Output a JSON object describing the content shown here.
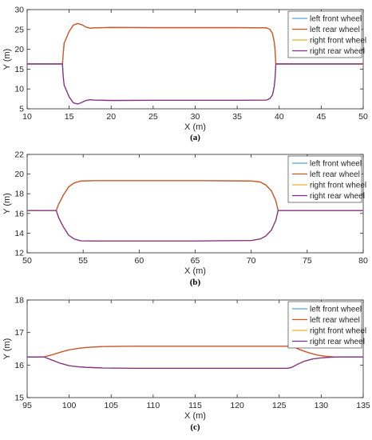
{
  "chart_data": [
    {
      "type": "line",
      "caption": "(a)",
      "xlabel": "X (m)",
      "ylabel": "Y (m)",
      "xlim": [
        10,
        50
      ],
      "ylim": [
        5,
        30
      ],
      "xticks": [
        10,
        15,
        20,
        25,
        30,
        35,
        40,
        45,
        50
      ],
      "yticks": [
        5,
        10,
        15,
        20,
        25,
        30
      ],
      "legend_position": "top-right",
      "series": [
        {
          "name": "left front wheel",
          "color": "#4fa6d8",
          "x": [
            10,
            14.2,
            14.3,
            14.4,
            15.0,
            15.5,
            16.0,
            16.5,
            17.0,
            17.5,
            18.0,
            20.0,
            25.0,
            30.0,
            35.0,
            38.5,
            38.9,
            39.2,
            39.4,
            39.5,
            39.6,
            50
          ],
          "y": [
            16.3,
            16.3,
            19.0,
            21.5,
            24.5,
            26.1,
            26.5,
            26.2,
            25.6,
            25.3,
            25.4,
            25.5,
            25.45,
            25.45,
            25.45,
            25.4,
            25.0,
            24.0,
            22.0,
            20.0,
            16.3,
            16.3
          ]
        },
        {
          "name": "left rear wheel",
          "color": "#d95319",
          "x": [
            10,
            14.2,
            14.3,
            14.4,
            15.0,
            15.5,
            16.0,
            16.5,
            17.0,
            17.5,
            18.0,
            20.0,
            25.0,
            30.0,
            35.0,
            38.5,
            38.9,
            39.2,
            39.4,
            39.5,
            39.6,
            50
          ],
          "y": [
            16.3,
            16.3,
            19.0,
            21.5,
            24.5,
            26.1,
            26.5,
            26.2,
            25.6,
            25.3,
            25.4,
            25.5,
            25.45,
            25.45,
            25.45,
            25.4,
            25.0,
            24.0,
            22.0,
            20.0,
            16.3,
            16.3
          ]
        },
        {
          "name": "right front wheel",
          "color": "#edb120",
          "x": [
            10,
            14.2,
            14.3,
            14.4,
            15.0,
            15.5,
            16.0,
            16.5,
            17.0,
            17.5,
            18.0,
            20.0,
            25.0,
            30.0,
            35.0,
            38.5,
            38.9,
            39.2,
            39.4,
            39.5,
            39.6,
            50
          ],
          "y": [
            16.3,
            16.3,
            13.0,
            11.0,
            8.0,
            6.5,
            6.2,
            6.6,
            7.1,
            7.3,
            7.2,
            7.1,
            7.15,
            7.15,
            7.15,
            7.2,
            7.6,
            8.5,
            10.5,
            12.5,
            16.3,
            16.3
          ]
        },
        {
          "name": "right rear wheel",
          "color": "#7e2f8e",
          "x": [
            10,
            14.2,
            14.3,
            14.4,
            15.0,
            15.5,
            16.0,
            16.5,
            17.0,
            17.5,
            18.0,
            20.0,
            25.0,
            30.0,
            35.0,
            38.5,
            38.9,
            39.2,
            39.4,
            39.5,
            39.6,
            50
          ],
          "y": [
            16.3,
            16.3,
            13.0,
            11.0,
            8.0,
            6.5,
            6.2,
            6.6,
            7.1,
            7.3,
            7.2,
            7.1,
            7.15,
            7.15,
            7.15,
            7.2,
            7.6,
            8.5,
            10.5,
            12.5,
            16.3,
            16.3
          ]
        }
      ]
    },
    {
      "type": "line",
      "caption": "(b)",
      "xlabel": "X (m)",
      "ylabel": "Y (m)",
      "xlim": [
        50,
        80
      ],
      "ylim": [
        12,
        22
      ],
      "xticks": [
        50,
        55,
        60,
        65,
        70,
        75,
        80
      ],
      "yticks": [
        12,
        14,
        16,
        18,
        20,
        22
      ],
      "legend_position": "top-right",
      "series": [
        {
          "name": "left front wheel",
          "color": "#4fa6d8",
          "x": [
            50,
            52.6,
            52.8,
            53.2,
            53.7,
            54.2,
            54.8,
            56,
            60,
            65,
            70,
            70.8,
            71.3,
            71.8,
            72.2,
            72.4,
            80
          ],
          "y": [
            16.3,
            16.3,
            16.9,
            17.8,
            18.7,
            19.1,
            19.3,
            19.33,
            19.33,
            19.33,
            19.3,
            19.2,
            18.9,
            18.3,
            17.3,
            16.3,
            16.3
          ]
        },
        {
          "name": "left rear wheel",
          "color": "#d95319",
          "x": [
            50,
            52.6,
            52.8,
            53.2,
            53.7,
            54.2,
            54.8,
            56,
            60,
            65,
            70,
            70.8,
            71.3,
            71.8,
            72.2,
            72.4,
            80
          ],
          "y": [
            16.3,
            16.3,
            16.9,
            17.8,
            18.7,
            19.1,
            19.3,
            19.33,
            19.33,
            19.33,
            19.3,
            19.2,
            18.9,
            18.3,
            17.3,
            16.3,
            16.3
          ]
        },
        {
          "name": "right front wheel",
          "color": "#edb120",
          "x": [
            50,
            52.6,
            52.8,
            53.2,
            53.7,
            54.2,
            54.8,
            56,
            60,
            65,
            70,
            70.8,
            71.3,
            71.8,
            72.2,
            72.4,
            80
          ],
          "y": [
            16.3,
            16.3,
            15.6,
            14.7,
            13.8,
            13.4,
            13.22,
            13.2,
            13.2,
            13.2,
            13.25,
            13.4,
            13.7,
            14.3,
            15.3,
            16.3,
            16.3
          ]
        },
        {
          "name": "right rear wheel",
          "color": "#7e2f8e",
          "x": [
            50,
            52.6,
            52.8,
            53.2,
            53.7,
            54.2,
            54.8,
            56,
            60,
            65,
            70,
            70.8,
            71.3,
            71.8,
            72.2,
            72.4,
            80
          ],
          "y": [
            16.3,
            16.3,
            15.6,
            14.7,
            13.8,
            13.4,
            13.22,
            13.2,
            13.2,
            13.2,
            13.25,
            13.4,
            13.7,
            14.3,
            15.3,
            16.3,
            16.3
          ]
        }
      ]
    },
    {
      "type": "line",
      "caption": "(c)",
      "xlabel": "X (m)",
      "ylabel": "Y (m)",
      "xlim": [
        95,
        135
      ],
      "ylim": [
        15,
        18
      ],
      "xticks": [
        95,
        100,
        105,
        110,
        115,
        120,
        125,
        130,
        135
      ],
      "yticks": [
        15,
        16,
        17,
        18
      ],
      "legend_position": "top-right",
      "series": [
        {
          "name": "left front wheel",
          "color": "#4fa6d8",
          "x": [
            95,
            97,
            98,
            99,
            100,
            101,
            102,
            104,
            108,
            115,
            120,
            126.2,
            126.8,
            127.5,
            128.5,
            129.5,
            130.5,
            131.5,
            132,
            135
          ],
          "y": [
            16.25,
            16.25,
            16.32,
            16.4,
            16.47,
            16.51,
            16.54,
            16.57,
            16.58,
            16.58,
            16.58,
            16.58,
            16.55,
            16.47,
            16.38,
            16.31,
            16.27,
            16.25,
            16.25,
            16.25
          ]
        },
        {
          "name": "left rear wheel",
          "color": "#d95319",
          "x": [
            95,
            97,
            98,
            99,
            100,
            101,
            102,
            104,
            108,
            115,
            120,
            126.2,
            126.8,
            127.5,
            128.5,
            129.5,
            130.5,
            131.5,
            132
          ],
          "y": [
            16.25,
            16.25,
            16.32,
            16.4,
            16.47,
            16.51,
            16.54,
            16.57,
            16.58,
            16.58,
            16.58,
            16.58,
            16.55,
            16.47,
            16.38,
            16.31,
            16.27,
            16.25,
            16.25
          ]
        },
        {
          "name": "right front wheel",
          "color": "#edb120",
          "x": [
            95,
            97,
            98,
            99,
            100,
            101,
            102,
            104,
            108,
            115,
            120,
            126,
            126.5,
            127,
            128,
            129,
            130,
            131,
            132,
            135
          ],
          "y": [
            16.25,
            16.25,
            16.15,
            16.05,
            15.98,
            15.95,
            15.93,
            15.91,
            15.9,
            15.9,
            15.9,
            15.9,
            15.93,
            16.0,
            16.12,
            16.19,
            16.22,
            16.24,
            16.25,
            16.25
          ]
        },
        {
          "name": "right rear wheel",
          "color": "#7e2f8e",
          "x": [
            95,
            97,
            98,
            99,
            100,
            101,
            102,
            104,
            108,
            115,
            120,
            126,
            126.5,
            127,
            128,
            129,
            130,
            131,
            132,
            135
          ],
          "y": [
            16.25,
            16.25,
            16.15,
            16.05,
            15.98,
            15.95,
            15.93,
            15.91,
            15.9,
            15.9,
            15.9,
            15.9,
            15.93,
            16.0,
            16.12,
            16.19,
            16.22,
            16.24,
            16.25,
            16.25
          ]
        }
      ]
    }
  ]
}
